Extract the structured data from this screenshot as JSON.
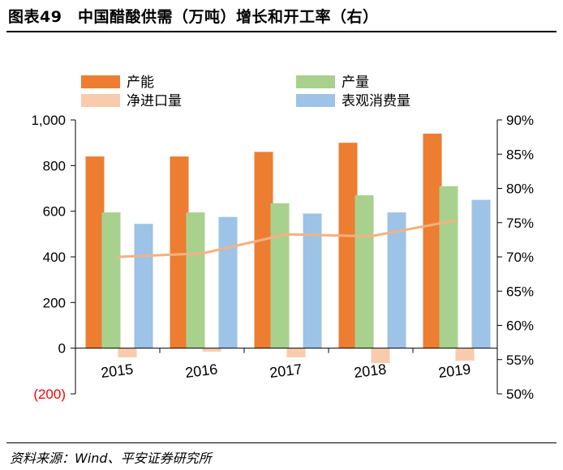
{
  "title": "图表49　中国醋酸供需（万吨）增长和开工率（右）",
  "source": "资料来源：Wind、平安证券研究所",
  "chart_data": {
    "type": "bar",
    "categories": [
      "2015",
      "2016",
      "2017",
      "2018",
      "2019"
    ],
    "series": [
      {
        "name": "产能",
        "type": "bar",
        "axis": "left",
        "color": "#ED7D31",
        "values": [
          840,
          840,
          860,
          900,
          940
        ]
      },
      {
        "name": "产量",
        "type": "bar",
        "axis": "left",
        "color": "#A9D18E",
        "values": [
          595,
          595,
          635,
          670,
          710
        ]
      },
      {
        "name": "净进口量",
        "type": "bar",
        "axis": "left",
        "color": "#F8CBAD",
        "values": [
          -40,
          -15,
          -40,
          -65,
          -55
        ]
      },
      {
        "name": "表观消费量",
        "type": "bar",
        "axis": "left",
        "color": "#9DC3E6",
        "values": [
          545,
          575,
          590,
          595,
          650
        ]
      },
      {
        "name": "开工率",
        "type": "line",
        "axis": "right",
        "color": "#F4B183",
        "values": [
          70.0,
          70.5,
          73.3,
          73.0,
          75.3
        ]
      }
    ],
    "y_left": {
      "min": -200,
      "max": 1000,
      "ticks": [
        {
          "value": 1000,
          "label": "1,000"
        },
        {
          "value": 800,
          "label": "800"
        },
        {
          "value": 600,
          "label": "600"
        },
        {
          "value": 400,
          "label": "400"
        },
        {
          "value": 200,
          "label": "200"
        },
        {
          "value": 0,
          "label": "0"
        },
        {
          "value": -200,
          "label": "(200)",
          "color": "#FF0000"
        }
      ]
    },
    "y_right": {
      "min": 50,
      "max": 90,
      "ticks": [
        {
          "value": 90,
          "label": "90%"
        },
        {
          "value": 85,
          "label": "85%"
        },
        {
          "value": 80,
          "label": "80%"
        },
        {
          "value": 75,
          "label": "75%"
        },
        {
          "value": 70,
          "label": "70%"
        },
        {
          "value": 65,
          "label": "65%"
        },
        {
          "value": 60,
          "label": "60%"
        },
        {
          "value": 55,
          "label": "55%"
        },
        {
          "value": 50,
          "label": "50%"
        }
      ]
    },
    "legend": [
      {
        "series": 0,
        "label": "产能"
      },
      {
        "series": 1,
        "label": "产量"
      },
      {
        "series": 2,
        "label": "净进口量"
      },
      {
        "series": 3,
        "label": "表观消费量"
      }
    ],
    "legend_position": "top",
    "grid": false
  }
}
